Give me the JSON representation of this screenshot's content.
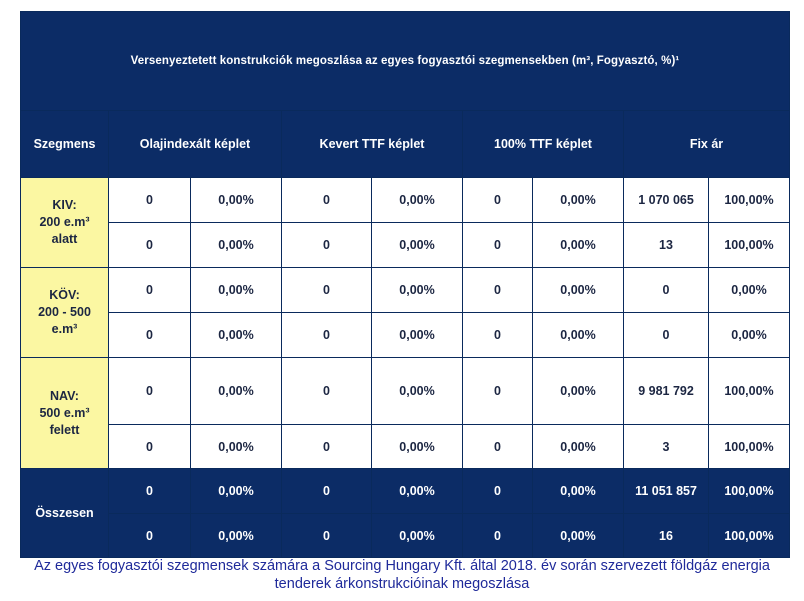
{
  "title": "Versenyeztetett konstrukciók megoszlása az egyes fogyasztói szegmensekben (m³, Fogyasztó, %)¹",
  "headers": {
    "segment": "Szegmens",
    "groups": [
      "Olajindexált képlet",
      "Kevert TTF képlet",
      "100% TTF képlet",
      "Fix ár"
    ]
  },
  "segments": [
    {
      "label_lines": [
        "KIV:",
        "200 e.m³",
        "alatt"
      ],
      "rows": [
        [
          "0",
          "0,00%",
          "0",
          "0,00%",
          "0",
          "0,00%",
          "1 070 065",
          "100,00%"
        ],
        [
          "0",
          "0,00%",
          "0",
          "0,00%",
          "0",
          "0,00%",
          "13",
          "100,00%"
        ]
      ]
    },
    {
      "label_lines": [
        "KÖV:",
        "200 - 500",
        "e.m³"
      ],
      "rows": [
        [
          "0",
          "0,00%",
          "0",
          "0,00%",
          "0",
          "0,00%",
          "0",
          "0,00%"
        ],
        [
          "0",
          "0,00%",
          "0",
          "0,00%",
          "0",
          "0,00%",
          "0",
          "0,00%"
        ]
      ]
    },
    {
      "label_lines": [
        "NAV:",
        "500 e.m³",
        "felett"
      ],
      "rows": [
        [
          "0",
          "0,00%",
          "0",
          "0,00%",
          "0",
          "0,00%",
          "9 981 792",
          "100,00%"
        ],
        [
          "0",
          "0,00%",
          "0",
          "0,00%",
          "0",
          "0,00%",
          "3",
          "100,00%"
        ]
      ]
    }
  ],
  "total": {
    "label": "Összesen",
    "rows": [
      [
        "0",
        "0,00%",
        "0",
        "0,00%",
        "0",
        "0,00%",
        "11 051 857",
        "100,00%"
      ],
      [
        "0",
        "0,00%",
        "0",
        "0,00%",
        "0",
        "0,00%",
        "16",
        "100,00%"
      ]
    ]
  },
  "caption_lines": [
    "Az egyes fogyasztói szegmensek számára a Sourcing Hungary Kft. által 2018. év során szervezett földgáz energia",
    "tenderek árkonstrukcióinak megoszlása"
  ],
  "colors": {
    "navy": "#0c2c66",
    "yellow": "#fbf7a2",
    "caption": "#1f2a9a"
  }
}
